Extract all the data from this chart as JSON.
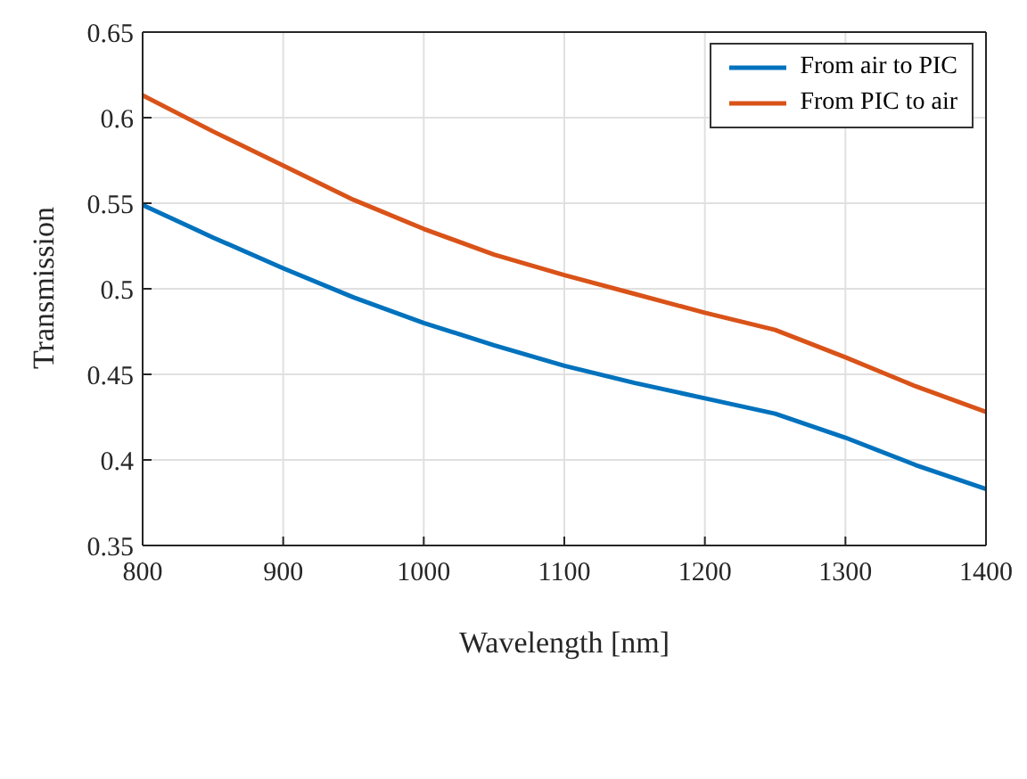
{
  "chart_data": {
    "type": "line",
    "xlabel": "Wavelength [nm]",
    "ylabel": "Transmission",
    "x": [
      800,
      850,
      900,
      950,
      1000,
      1050,
      1100,
      1150,
      1200,
      1250,
      1300,
      1350,
      1400
    ],
    "series": [
      {
        "name": "From air to PIC",
        "color": "#0072bd",
        "values": [
          0.549,
          0.53,
          0.512,
          0.495,
          0.48,
          0.467,
          0.455,
          0.445,
          0.436,
          0.427,
          0.413,
          0.397,
          0.383
        ]
      },
      {
        "name": "From PIC to air",
        "color": "#d95319",
        "values": [
          0.613,
          0.592,
          0.572,
          0.552,
          0.535,
          0.52,
          0.508,
          0.497,
          0.486,
          0.476,
          0.46,
          0.443,
          0.428
        ]
      }
    ],
    "xlim": [
      800,
      1400
    ],
    "xticks": [
      800,
      900,
      1000,
      1100,
      1200,
      1300,
      1400
    ],
    "ylim": [
      0.35,
      0.65
    ],
    "yticks": [
      0.35,
      0.4,
      0.45,
      0.5,
      0.55,
      0.6,
      0.65
    ],
    "grid": true,
    "legend": "top right",
    "marker": "none",
    "line_style": "solid"
  }
}
